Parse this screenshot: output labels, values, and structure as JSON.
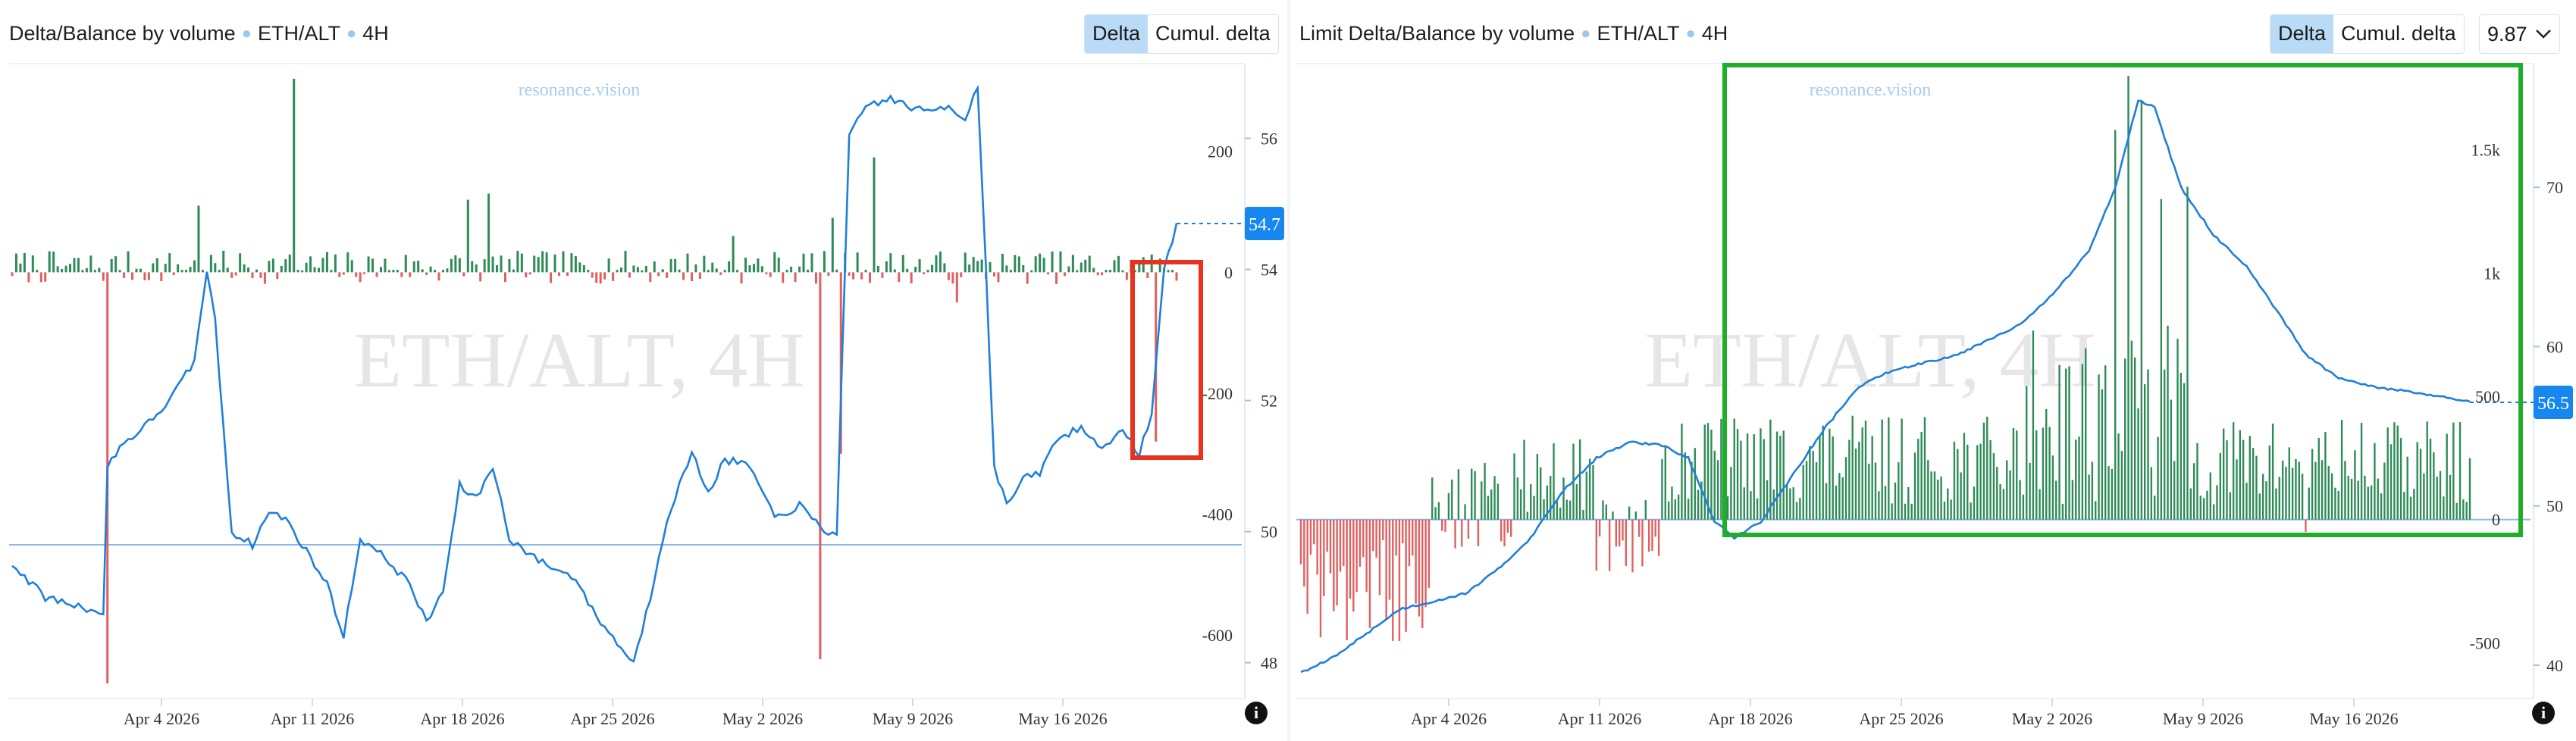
{
  "left": {
    "title": "Delta/Balance by volume",
    "symbol": "ETH/ALT",
    "timeframe": "4H",
    "toggle": [
      "Delta",
      "Cumul. delta"
    ],
    "active_toggle": "Delta",
    "watermark": "ETH/ALT, 4H",
    "brand": "resonance.vision",
    "info": "i",
    "price_tag": "54.7"
  },
  "right": {
    "title": "Limit Delta/Balance by volume",
    "symbol": "ETH/ALT",
    "timeframe": "4H",
    "toggle": [
      "Delta",
      "Cumul. delta"
    ],
    "active_toggle": "Delta",
    "select_value": "9.87",
    "watermark": "ETH/ALT, 4H",
    "brand": "resonance.vision",
    "info": "i",
    "price_tag": "56.5"
  },
  "chart_data": [
    {
      "type": "bar",
      "panel": "left",
      "x_ticks": [
        "Apr 4 2026",
        "Apr 11 2026",
        "Apr 18 2026",
        "Apr 25 2026",
        "May 2 2026",
        "May 9 2026",
        "May 16 2026"
      ],
      "delta_axis": {
        "ticks": [
          "200",
          "0",
          "-200",
          "-400",
          "-600"
        ],
        "ylim": [
          -700,
          330
        ]
      },
      "balance_axis": {
        "ticks": [
          "56",
          "54",
          "52",
          "50",
          "48"
        ],
        "ylim": [
          47.5,
          57.0
        ]
      },
      "balance_last": 54.7,
      "reference_line": 49.8,
      "series": [
        {
          "role": "delta",
          "colors": {
            "positive": "#2e8b57",
            "negative": "#e06060"
          }
        },
        {
          "role": "balance",
          "color": "#1e7fdc"
        }
      ],
      "balance_keypoints": [
        [
          0,
          49.5
        ],
        [
          8,
          49.0
        ],
        [
          20,
          48.8
        ],
        [
          22,
          48.7
        ],
        [
          23,
          51.0
        ],
        [
          26,
          51.3
        ],
        [
          32,
          51.6
        ],
        [
          38,
          52.0
        ],
        [
          44,
          52.6
        ],
        [
          47,
          54.0
        ],
        [
          49,
          53.2
        ],
        [
          53,
          50.0
        ],
        [
          58,
          49.8
        ],
        [
          62,
          50.3
        ],
        [
          66,
          50.2
        ],
        [
          70,
          49.8
        ],
        [
          76,
          49.2
        ],
        [
          80,
          48.4
        ],
        [
          84,
          49.9
        ],
        [
          90,
          49.6
        ],
        [
          96,
          49.2
        ],
        [
          100,
          48.6
        ],
        [
          104,
          49.1
        ],
        [
          108,
          50.7
        ],
        [
          112,
          50.5
        ],
        [
          116,
          51.0
        ],
        [
          120,
          49.9
        ],
        [
          126,
          49.6
        ],
        [
          132,
          49.4
        ],
        [
          136,
          49.3
        ],
        [
          140,
          48.8
        ],
        [
          146,
          48.3
        ],
        [
          150,
          48.0
        ],
        [
          154,
          49.0
        ],
        [
          158,
          50.2
        ],
        [
          164,
          51.2
        ],
        [
          168,
          50.6
        ],
        [
          172,
          51.1
        ],
        [
          178,
          51.0
        ],
        [
          184,
          50.2
        ],
        [
          190,
          50.4
        ],
        [
          196,
          50.0
        ],
        [
          199,
          50.0
        ],
        [
          202,
          56.0
        ],
        [
          206,
          56.5
        ],
        [
          212,
          56.6
        ],
        [
          220,
          56.4
        ],
        [
          226,
          56.5
        ],
        [
          230,
          56.3
        ],
        [
          233,
          56.8
        ],
        [
          235,
          54.0
        ],
        [
          237,
          51.0
        ],
        [
          240,
          50.4
        ],
        [
          244,
          50.8
        ],
        [
          248,
          50.9
        ],
        [
          252,
          51.4
        ],
        [
          258,
          51.6
        ],
        [
          262,
          51.3
        ],
        [
          268,
          51.5
        ],
        [
          272,
          51.2
        ],
        [
          275,
          51.8
        ],
        [
          278,
          54.0
        ],
        [
          281,
          54.7
        ]
      ],
      "delta_bars_approx": "281 bars, typical magnitude 5-40; largest positive ~320 near Apr 13, largest negative ~-680 near Apr 2 and ~-640 near May 6"
    },
    {
      "type": "bar",
      "panel": "right",
      "x_ticks": [
        "Apr 4 2026",
        "Apr 11 2026",
        "Apr 18 2026",
        "Apr 25 2026",
        "May 2 2026",
        "May 9 2026",
        "May 16 2026"
      ],
      "delta_axis": {
        "ticks": [
          "1.5k",
          "1k",
          "500",
          "0",
          "-500"
        ],
        "ylim": [
          -720,
          1800
        ]
      },
      "balance_axis": {
        "ticks": [
          "70",
          "60",
          "50",
          "40"
        ],
        "ylim": [
          38,
          77
        ]
      },
      "balance_last": 56.5,
      "reference_line": 0,
      "series": [
        {
          "role": "delta",
          "colors": {
            "positive": "#2e8b57",
            "negative": "#e06060"
          }
        },
        {
          "role": "balance",
          "color": "#1e7fdc"
        }
      ],
      "balance_keypoints": [
        [
          0,
          39.5
        ],
        [
          10,
          40.5
        ],
        [
          20,
          42.0
        ],
        [
          30,
          43.5
        ],
        [
          40,
          44.0
        ],
        [
          50,
          44.5
        ],
        [
          60,
          46.0
        ],
        [
          70,
          48.0
        ],
        [
          80,
          51.0
        ],
        [
          90,
          53.0
        ],
        [
          100,
          54.0
        ],
        [
          110,
          53.8
        ],
        [
          118,
          53.0
        ],
        [
          126,
          49.0
        ],
        [
          132,
          48.0
        ],
        [
          140,
          49.0
        ],
        [
          150,
          52.0
        ],
        [
          160,
          55.0
        ],
        [
          170,
          57.5
        ],
        [
          180,
          58.5
        ],
        [
          190,
          59.0
        ],
        [
          200,
          59.5
        ],
        [
          210,
          60.5
        ],
        [
          220,
          61.5
        ],
        [
          230,
          63.5
        ],
        [
          240,
          66.0
        ],
        [
          248,
          70.0
        ],
        [
          255,
          75.5
        ],
        [
          260,
          75.0
        ],
        [
          268,
          70.0
        ],
        [
          278,
          67.0
        ],
        [
          288,
          65.0
        ],
        [
          298,
          62.0
        ],
        [
          306,
          59.5
        ],
        [
          316,
          58.0
        ],
        [
          326,
          57.5
        ],
        [
          336,
          57.2
        ],
        [
          346,
          56.9
        ],
        [
          356,
          56.5
        ]
      ],
      "delta_bars_approx": "356 bars; negative -50 to -560 until ~Apr 18, positive 50-600 afterwards, peak ~1.8k near May 6"
    }
  ]
}
